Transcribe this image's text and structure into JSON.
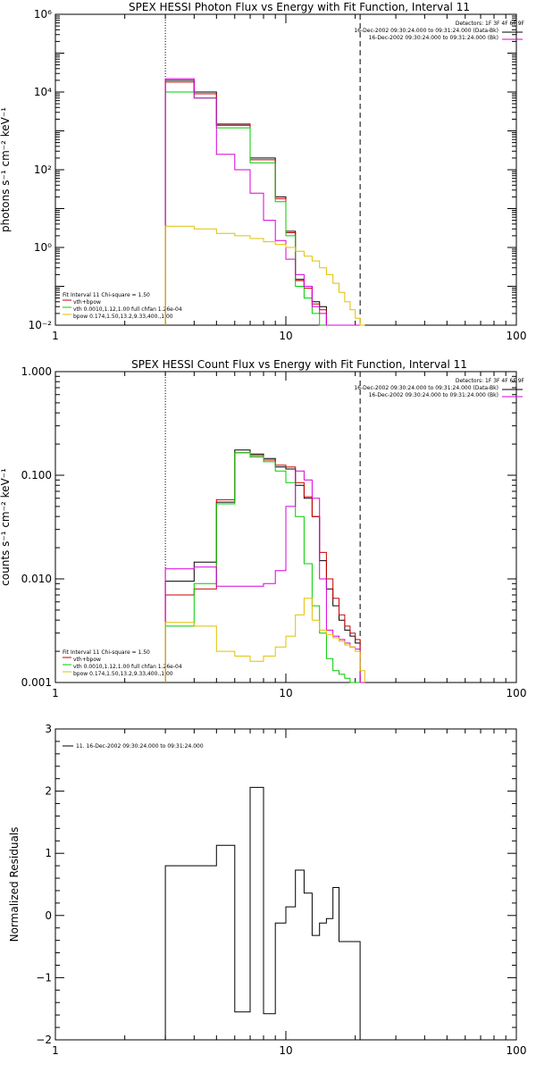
{
  "colors": {
    "data": "#000000",
    "bk": "#cc0000",
    "vth": "#00cc00",
    "vth_bpow": "#d800d8",
    "bpow": "#e0c000",
    "bg": "#ffffff",
    "axes": "#000000"
  },
  "chart_data": [
    {
      "type": "line",
      "title": "SPEX HESSI Photon Flux vs Energy with Fit Function, Interval 11",
      "xlabel": "",
      "ylabel": "photons s⁻¹ cm⁻² keV⁻¹",
      "xscale": "log",
      "yscale": "log",
      "xlim": [
        1,
        100
      ],
      "ylim": [
        0.01,
        1000000
      ],
      "xticks": [
        1,
        10,
        100
      ],
      "xtick_labels": [
        "1",
        "10",
        "100"
      ],
      "yticks": [
        0.01,
        1,
        100,
        10000,
        1000000
      ],
      "ytick_labels": [
        "10⁻²",
        "10⁰",
        "10²",
        "10⁴",
        "10⁶"
      ],
      "vlines": [
        {
          "x": 3,
          "style": "dotted"
        },
        {
          "x": 21,
          "style": "dashed"
        }
      ],
      "bin_edges": [
        3,
        4,
        5,
        6,
        7,
        8,
        9,
        10,
        11,
        12,
        13,
        14,
        15,
        16,
        17,
        18,
        19,
        20,
        21,
        22
      ],
      "series": [
        {
          "name": "",
          "key": "data",
          "values": [
            20000,
            10000,
            1400,
            1400,
            200,
            200,
            20,
            2.6,
            0.15,
            0.1,
            0.04,
            0.03,
            0.01,
            0.01,
            0.01,
            0.01,
            0.01,
            0.01,
            0.01
          ],
          "clip_bottom": true
        },
        {
          "name": "vth+bpow",
          "key": "bk",
          "values": [
            18000,
            9000,
            1500,
            1500,
            180,
            180,
            18,
            2.4,
            0.14,
            0.09,
            0.035,
            0.025,
            0.01,
            0.01,
            0.01,
            0.01,
            0.01,
            0.01,
            0.01
          ],
          "clip_bottom": true
        },
        {
          "name": "vth 0.0010,1.12,1.00  full chfan 1.26e-04",
          "key": "vth",
          "values": [
            10000,
            7000,
            1200,
            1200,
            150,
            150,
            15,
            2.0,
            0.1,
            0.05,
            0.02,
            0.01,
            0.01,
            0.01,
            0.01,
            0.01,
            0.01,
            0.01,
            0.01
          ],
          "clip_bottom": true
        },
        {
          "name": "",
          "key": "vth_bpow",
          "values": [
            22000,
            7000,
            250,
            100,
            25,
            5,
            1.5,
            0.5,
            0.2,
            0.1,
            0.03,
            0.02,
            0.01,
            0.01,
            0.01,
            0.01,
            0.01,
            0.01,
            0.01
          ],
          "clip_bottom": true
        },
        {
          "name": "bpow 0.174,1.50,13.2,9.33,400.,1.00",
          "key": "bpow",
          "values": [
            3.5,
            3,
            2.3,
            2.0,
            1.7,
            1.4,
            1.2,
            1.0,
            0.8,
            0.6,
            0.45,
            0.3,
            0.2,
            0.12,
            0.07,
            0.04,
            0.025,
            0.015,
            0.01
          ],
          "clip_bottom": true
        }
      ],
      "legend": {
        "header": "Detectors: 1F 3F 4F 6F 9F",
        "entries": [
          "16-Dec-2002 09:30:24.000 to 09:31:24.000 (Data-Bk)",
          "16-Dec-2002 09:30:24.000 to 09:31:24.000 (Bk)"
        ],
        "fit_header": "Fit Interval 11    Chi-square = 1.50"
      }
    },
    {
      "type": "line",
      "title": "SPEX HESSI Count Flux vs Energy with Fit Function, Interval 11",
      "xlabel": "",
      "ylabel": "counts s⁻¹ cm⁻² keV⁻¹",
      "xscale": "log",
      "yscale": "log",
      "xlim": [
        1,
        100
      ],
      "ylim": [
        0.001,
        1.0
      ],
      "xticks": [
        1,
        10,
        100
      ],
      "xtick_labels": [
        "1",
        "10",
        "100"
      ],
      "yticks": [
        0.001,
        0.01,
        0.1,
        1.0
      ],
      "ytick_labels": [
        "0.001",
        "0.010",
        "0.100",
        "1.000"
      ],
      "vlines": [
        {
          "x": 3,
          "style": "dotted"
        },
        {
          "x": 21,
          "style": "dashed"
        }
      ],
      "bin_edges": [
        3,
        4,
        5,
        6,
        7,
        8,
        9,
        10,
        11,
        12,
        13,
        14,
        15,
        16,
        17,
        18,
        19,
        20,
        21,
        22
      ],
      "series": [
        {
          "name": "",
          "key": "data",
          "values": [
            0.0095,
            0.0145,
            0.055,
            0.175,
            0.16,
            0.145,
            0.12,
            0.115,
            0.08,
            0.06,
            0.04,
            0.015,
            0.008,
            0.0055,
            0.004,
            0.0032,
            0.0028,
            0.0024,
            0.001
          ],
          "clip_bottom": true
        },
        {
          "name": "vth+bpow",
          "key": "bk",
          "values": [
            0.007,
            0.008,
            0.058,
            0.165,
            0.155,
            0.14,
            0.125,
            0.12,
            0.085,
            0.062,
            0.04,
            0.018,
            0.01,
            0.0065,
            0.0045,
            0.0035,
            0.003,
            0.0026,
            0.001
          ],
          "clip_bottom": true
        },
        {
          "name": "vth 0.0010,1.12,1.00  full chfan 1.26e-04",
          "key": "vth",
          "values": [
            0.0035,
            0.009,
            0.053,
            0.165,
            0.15,
            0.135,
            0.11,
            0.085,
            0.04,
            0.014,
            0.0055,
            0.003,
            0.0017,
            0.0013,
            0.0012,
            0.0011,
            0.001,
            0.001,
            0.001
          ],
          "clip_bottom": true
        },
        {
          "name": "",
          "key": "vth_bpow",
          "values": [
            0.0125,
            0.013,
            0.0085,
            0.0085,
            0.0085,
            0.009,
            0.012,
            0.05,
            0.11,
            0.09,
            0.06,
            0.01,
            0.0032,
            0.0028,
            0.0026,
            0.0024,
            0.0022,
            0.0021,
            0.001
          ],
          "clip_bottom": true
        },
        {
          "name": "bpow 0.174,1.50,13.2,9.33,400.,1.00",
          "key": "bpow",
          "values": [
            0.0038,
            0.0035,
            0.002,
            0.0018,
            0.0016,
            0.0018,
            0.0022,
            0.0028,
            0.0045,
            0.0065,
            0.004,
            0.0032,
            0.0029,
            0.0027,
            0.0025,
            0.0023,
            0.0022,
            0.002,
            0.0013
          ],
          "clip_bottom": true
        }
      ],
      "legend": {
        "header": "Detectors: 1F 3F 4F 6F 9F",
        "entries": [
          "16-Dec-2002 09:30:24.000 to 09:31:24.000 (Data-Bk)",
          "16-Dec-2002 09:30:24.000 to 09:31:24.000 (Bk)"
        ],
        "fit_header": "Fit Interval 11    Chi-square = 1.50"
      }
    },
    {
      "type": "line",
      "title": "",
      "xlabel": "",
      "ylabel": "Normalized Residuals",
      "xscale": "log",
      "yscale": "linear",
      "xlim": [
        1,
        100
      ],
      "ylim": [
        -2,
        3
      ],
      "xticks": [
        1,
        10,
        100
      ],
      "xtick_labels": [
        "1",
        "10",
        "100"
      ],
      "yticks": [
        -2,
        -1,
        0,
        1,
        2,
        3
      ],
      "ytick_labels": [
        "−2",
        "−1",
        "0",
        "1",
        "2",
        "3"
      ],
      "bin_edges": [
        3,
        4,
        5,
        6,
        7,
        8,
        9,
        10,
        11,
        12,
        13,
        14,
        15,
        16,
        17,
        18,
        19,
        20,
        21
      ],
      "series": [
        {
          "name": "",
          "key": "data",
          "values": [
            0.8,
            0.8,
            1.13,
            -1.55,
            2.06,
            -1.58,
            -0.12,
            0.14,
            0.73,
            0.36,
            -0.32,
            -0.12,
            -0.05,
            0.45,
            -0.42,
            -0.42,
            -0.42,
            -0.42
          ]
        }
      ],
      "legend": {
        "entries": [
          "11. 16-Dec-2002 09:30:24.000 to 09:31:24.000"
        ]
      }
    }
  ]
}
